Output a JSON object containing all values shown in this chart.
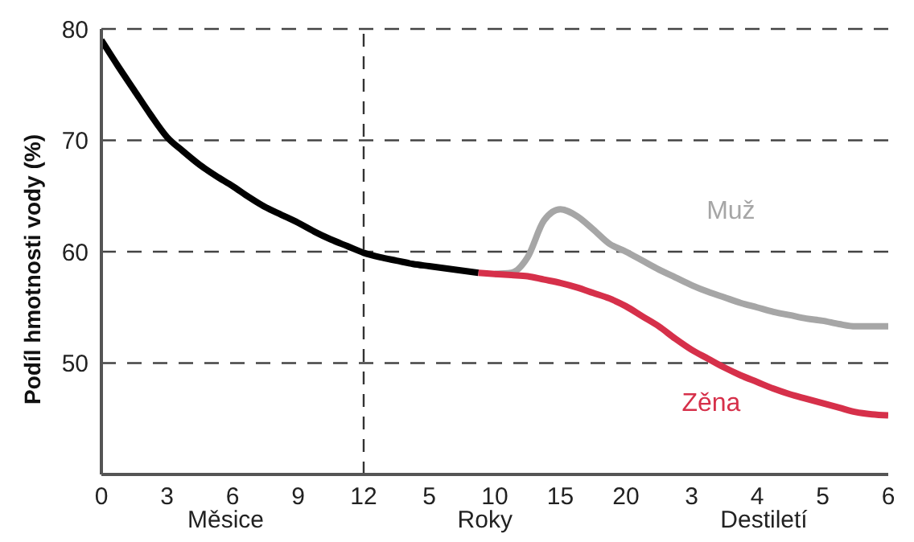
{
  "chart_data": {
    "type": "line",
    "ylabel": "Podíl hmotnosti vody (%)",
    "categories": [
      "0",
      null,
      null,
      null,
      "3",
      null,
      null,
      null,
      "6",
      null,
      null,
      null,
      "9",
      null,
      null,
      null,
      "12",
      null,
      null,
      null,
      "5",
      null,
      null,
      null,
      "10",
      null,
      null,
      null,
      "15",
      null,
      null,
      null,
      "20",
      null,
      null,
      null,
      "3",
      null,
      null,
      null,
      "4",
      null,
      null,
      null,
      "5",
      null,
      null,
      null,
      "6"
    ],
    "ylim": [
      40,
      80
    ],
    "yticks": [
      50,
      60,
      70,
      80
    ],
    "grid": "y",
    "line_style": "solid",
    "marker": "none",
    "ref_lines": [
      {
        "axis": "x",
        "value": "12",
        "line_style": "dashed",
        "color": "#333333"
      }
    ],
    "annotations": [
      "Měsice",
      "Roky",
      "Destiletí"
    ],
    "series": [
      {
        "color": "#000000",
        "values": [
          79,
          76.7,
          74.5,
          72.3,
          70.3,
          69,
          67.8,
          66.8,
          65.9,
          64.9,
          64,
          63.3,
          62.6,
          61.8,
          61.1,
          60.5,
          59.9,
          59.5,
          59.2,
          58.9,
          58.7,
          58.5,
          58.3,
          58.1,
          null,
          null,
          null,
          null,
          null,
          null,
          null,
          null,
          null,
          null,
          null,
          null,
          null,
          null,
          null,
          null,
          null,
          null,
          null,
          null,
          null,
          null,
          null,
          null,
          null
        ]
      },
      {
        "name": "Muž",
        "color": "#a6a6a6",
        "values": [
          null,
          null,
          null,
          null,
          null,
          null,
          null,
          null,
          null,
          null,
          null,
          null,
          null,
          null,
          null,
          null,
          null,
          null,
          null,
          null,
          null,
          null,
          null,
          null,
          58,
          58.1,
          59.5,
          62.8,
          63.8,
          63.2,
          62,
          60.7,
          60,
          59.2,
          58.4,
          57.7,
          57,
          56.4,
          55.9,
          55.4,
          55,
          54.6,
          54.3,
          54,
          53.8,
          53.5,
          53.3,
          53.3,
          53.3
        ]
      },
      {
        "name": "Zěna",
        "color": "#d6304a",
        "values": [
          null,
          null,
          null,
          null,
          null,
          null,
          null,
          null,
          null,
          null,
          null,
          null,
          null,
          null,
          null,
          null,
          null,
          null,
          null,
          null,
          null,
          null,
          null,
          58.1,
          58,
          57.9,
          57.8,
          57.5,
          57.2,
          56.8,
          56.3,
          55.8,
          55.1,
          54.2,
          53.3,
          52.2,
          51.2,
          50.4,
          49.6,
          48.9,
          48.3,
          47.7,
          47.2,
          46.8,
          46.4,
          46,
          45.6,
          45.4,
          45.3
        ]
      }
    ]
  }
}
